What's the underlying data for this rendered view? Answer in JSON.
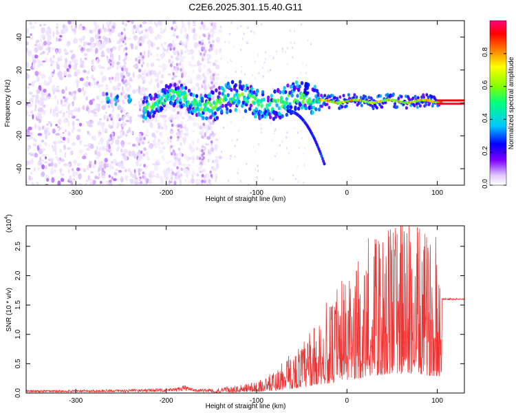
{
  "title": "C2E6.2025.301.15.40.G11",
  "chart_data": [
    {
      "type": "heatmap",
      "name": "spectrogram",
      "xlabel": "Height of straight line (km)",
      "ylabel": "Frequency (Hz)",
      "xlim": [
        -355,
        130
      ],
      "ylim": [
        -50,
        50
      ],
      "xticks": [
        -300,
        -200,
        -100,
        0,
        100
      ],
      "yticks": [
        -40,
        -20,
        0,
        20,
        40
      ],
      "xtick_labels": [
        "-300",
        "-200",
        "-100",
        "0",
        "100"
      ],
      "ytick_labels": [
        "-40",
        "-20",
        "0",
        "20",
        "40"
      ],
      "colorbar": {
        "label": "Normalized spectral amplitude",
        "range": [
          0,
          1
        ],
        "ticks": [
          0.0,
          0.2,
          0.4,
          0.6,
          0.8
        ],
        "tick_labels": [
          "0.0",
          "0.2",
          "0.4",
          "0.6",
          "0.8"
        ],
        "colormap": [
          "#ffffff",
          "#e0c8ff",
          "#8000ff",
          "#0000ff",
          "#00c8ff",
          "#00ff80",
          "#80ff00",
          "#ffff00",
          "#ff8000",
          "#ff0000",
          "#ff0080"
        ]
      },
      "features": {
        "noise_region_km": [
          -355,
          -140
        ],
        "signal_band_start_km": -225,
        "steady_tone_start_km": -30,
        "tone_frequency_hz": 1,
        "descending_branch": {
          "start_km": -65,
          "end_km": -25,
          "start_hz": -5,
          "end_hz": -37
        }
      }
    },
    {
      "type": "line",
      "name": "snr",
      "series": [
        {
          "name": "SNR",
          "color": "#ee3333"
        }
      ],
      "xlabel": "Height of straight line (km)",
      "ylabel": "SNR (10 * v/v)",
      "y_multiplier_label": "(x10",
      "y_multiplier_exp": "4",
      "xlim": [
        -355,
        130
      ],
      "ylim": [
        0,
        2.85
      ],
      "xticks": [
        -300,
        -200,
        -100,
        0,
        100
      ],
      "yticks": [
        0.0,
        0.5,
        1.0,
        1.5,
        2.0,
        2.5
      ],
      "xtick_labels": [
        "-300",
        "-200",
        "-100",
        "0",
        "100"
      ],
      "ytick_labels": [
        "0.0",
        "0.5",
        "1.0",
        "1.5",
        "2.0",
        "2.5"
      ],
      "envelope": {
        "x": [
          -355,
          -250,
          -190,
          -180,
          -170,
          -140,
          -110,
          -90,
          -70,
          -50,
          -30,
          -10,
          10,
          30,
          50,
          70,
          90,
          105,
          130
        ],
        "y": [
          0.04,
          0.05,
          0.07,
          0.12,
          0.06,
          0.06,
          0.12,
          0.2,
          0.38,
          0.65,
          0.95,
          1.25,
          1.6,
          1.95,
          2.15,
          2.2,
          2.0,
          1.85,
          1.6
        ]
      },
      "tail_value": 1.6
    }
  ]
}
